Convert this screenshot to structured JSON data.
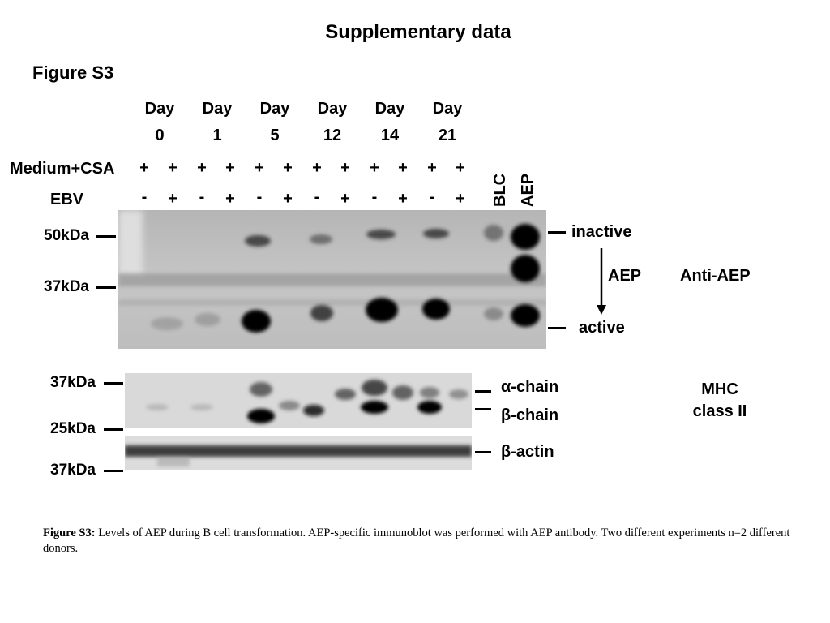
{
  "header": {
    "title": "Supplementary data"
  },
  "figure": {
    "label": "Figure S3",
    "days": [
      {
        "word": "Day",
        "num": "0"
      },
      {
        "word": "Day",
        "num": "1"
      },
      {
        "word": "Day",
        "num": "5"
      },
      {
        "word": "Day",
        "num": "12"
      },
      {
        "word": "Day",
        "num": "14"
      },
      {
        "word": "Day",
        "num": "21"
      }
    ],
    "rows": {
      "medium_label": "Medium+CSA",
      "medium_signs": [
        "+",
        "+",
        "+",
        "+",
        "+",
        "+",
        "+",
        "+",
        "+",
        "+",
        "+",
        "+"
      ],
      "ebv_label": "EBV",
      "ebv_signs": [
        "-",
        "+",
        "-",
        "+",
        "-",
        "+",
        "-",
        "+",
        "-",
        "+",
        "-",
        "+"
      ]
    },
    "extra_lanes": [
      "BLC",
      "AEP"
    ],
    "aep_blot": {
      "markers": [
        "50kDa",
        "37kDa"
      ],
      "inactive_label": "inactive",
      "active_label": "active",
      "arrow_label": "AEP",
      "antibody_label": "Anti-AEP"
    },
    "mhc_blot": {
      "markers": [
        "37kDa",
        "25kDa"
      ],
      "alpha_label": "α-chain",
      "beta_label": "β-chain",
      "group_label_line1": "MHC",
      "group_label_line2": "class II"
    },
    "actin_blot": {
      "marker": "37kDa",
      "label": "β-actin"
    }
  },
  "caption": {
    "lead": "Figure S3:",
    "text": " Levels of AEP during B cell transformation. AEP-specific immunoblot was performed with AEP antibody. Two different experiments n=2 different donors."
  },
  "colors": {
    "ink": "#000000",
    "blot_bg": "#c7c7c7",
    "band": "#1a1a1a"
  }
}
